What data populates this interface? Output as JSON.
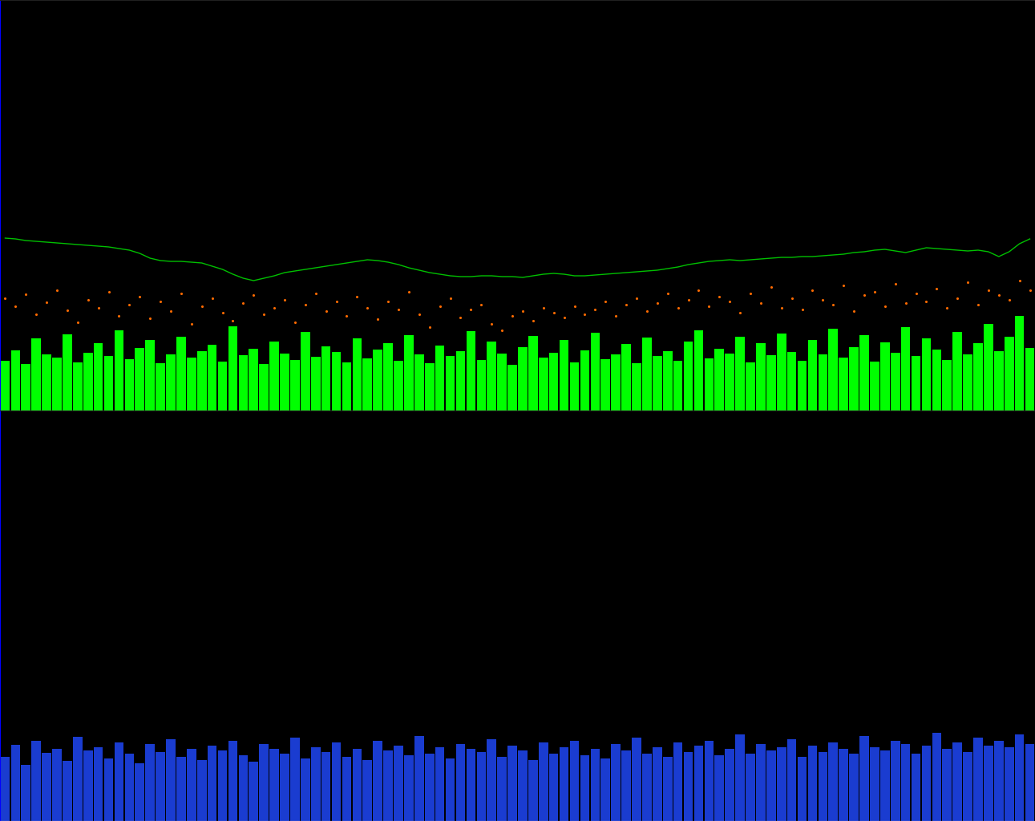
{
  "chart_data": [
    {
      "type": "bar",
      "xlim": [
        -0.5,
        99.5
      ],
      "ylim": [
        0,
        512
      ],
      "tick_labels": false,
      "grid": false,
      "series": [
        {
          "type": "bar",
          "color": "#00ff00",
          "values": [
            62,
            75,
            58,
            90,
            70,
            66,
            95,
            60,
            72,
            84,
            68,
            100,
            64,
            78,
            88,
            59,
            70,
            92,
            66,
            74,
            82,
            61,
            105,
            69,
            77,
            58,
            86,
            71,
            63,
            98,
            67,
            80,
            73,
            60,
            90,
            65,
            76,
            84,
            62,
            94,
            70,
            59,
            81,
            68,
            74,
            99,
            63,
            86,
            71,
            57,
            79,
            93,
            66,
            72,
            88,
            60,
            75,
            97,
            64,
            70,
            83,
            59,
            91,
            68,
            74,
            62,
            86,
            100,
            65,
            77,
            71,
            92,
            60,
            84,
            69,
            96,
            73,
            62,
            88,
            70,
            102,
            66,
            79,
            94,
            61,
            85,
            72,
            104,
            68,
            90,
            76,
            63,
            98,
            70,
            84,
            108,
            74,
            92,
            118,
            78
          ]
        },
        {
          "type": "line",
          "color": "#00c000",
          "line_style": "solid",
          "values": [
            215,
            214,
            212,
            211,
            210,
            209,
            208,
            207,
            206,
            205,
            204,
            202,
            200,
            196,
            190,
            187,
            186,
            186,
            185,
            184,
            180,
            176,
            170,
            165,
            162,
            165,
            168,
            172,
            174,
            176,
            178,
            180,
            182,
            184,
            186,
            188,
            187,
            185,
            182,
            178,
            175,
            172,
            170,
            168,
            167,
            167,
            168,
            168,
            167,
            167,
            166,
            168,
            170,
            171,
            170,
            168,
            168,
            169,
            170,
            171,
            172,
            173,
            174,
            175,
            177,
            179,
            182,
            184,
            186,
            187,
            188,
            187,
            188,
            189,
            190,
            191,
            191,
            192,
            192,
            193,
            194,
            195,
            197,
            198,
            200,
            201,
            199,
            197,
            200,
            203,
            202,
            201,
            200,
            199,
            200,
            198,
            192,
            198,
            208,
            214
          ]
        },
        {
          "type": "scatter",
          "color": "#ff6a00",
          "marker": "dot",
          "values": [
            140,
            130,
            145,
            120,
            135,
            150,
            125,
            110,
            138,
            128,
            148,
            118,
            132,
            142,
            115,
            136,
            124,
            146,
            108,
            130,
            140,
            122,
            112,
            134,
            144,
            120,
            128,
            138,
            110,
            132,
            146,
            124,
            136,
            118,
            142,
            128,
            114,
            136,
            126,
            148,
            120,
            104,
            130,
            140,
            116,
            126,
            132,
            108,
            100,
            118,
            124,
            112,
            128,
            122,
            116,
            130,
            120,
            126,
            136,
            118,
            132,
            140,
            124,
            134,
            146,
            128,
            138,
            150,
            130,
            142,
            136,
            122,
            146,
            134,
            154,
            128,
            140,
            126,
            150,
            138,
            132,
            156,
            124,
            144,
            148,
            130,
            158,
            134,
            146,
            136,
            152,
            128,
            140,
            160,
            132,
            150,
            144,
            138,
            162,
            150
          ]
        }
      ]
    },
    {
      "type": "bar",
      "xlim": [
        -0.5,
        99.5
      ],
      "ylim": [
        0,
        512
      ],
      "tick_labels": false,
      "grid": false,
      "series": [
        {
          "type": "bar",
          "color": "#1a3cd0",
          "values": [
            80,
            95,
            70,
            100,
            85,
            90,
            75,
            105,
            88,
            92,
            78,
            98,
            84,
            72,
            96,
            86,
            102,
            80,
            90,
            76,
            94,
            88,
            100,
            82,
            74,
            96,
            90,
            84,
            104,
            78,
            92,
            86,
            98,
            80,
            90,
            76,
            100,
            88,
            94,
            82,
            106,
            84,
            92,
            78,
            96,
            90,
            86,
            102,
            80,
            94,
            88,
            76,
            98,
            84,
            92,
            100,
            82,
            90,
            78,
            96,
            88,
            104,
            84,
            92,
            80,
            98,
            86,
            94,
            100,
            82,
            90,
            108,
            84,
            96,
            88,
            92,
            102,
            80,
            94,
            86,
            98,
            90,
            84,
            106,
            92,
            88,
            100,
            96,
            84,
            94,
            110,
            90,
            98,
            86,
            104,
            94,
            100,
            92,
            108,
            96
          ]
        }
      ]
    }
  ]
}
